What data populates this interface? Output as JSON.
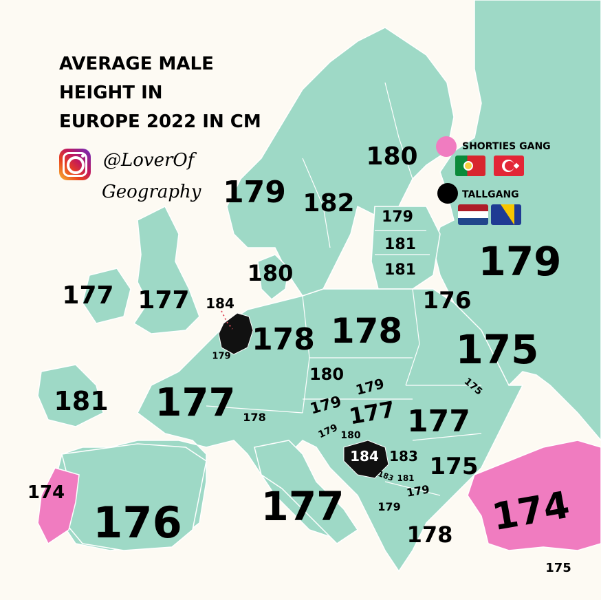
{
  "title": {
    "line1": "AVERAGE MALE",
    "line2": "HEIGHT IN",
    "line3": "EUROPE 2022 IN CM"
  },
  "credit": {
    "icon": "instagram-icon",
    "handle_line1": "@LoverOf",
    "handle_line2": "Geography"
  },
  "legend": {
    "shorties": {
      "label": "SHORTIES GANG",
      "color": "#f07cc0",
      "flags": [
        "portugal-flag",
        "turkey-flag"
      ]
    },
    "tall": {
      "label": "TALLGANG",
      "color": "#000000",
      "flags": [
        "netherlands-flag",
        "bosnia-flag"
      ]
    }
  },
  "colors": {
    "land": "#9ed9c6",
    "sea": "#fdfaf3",
    "shortest": "#f07cc0",
    "tallest": "#111111"
  },
  "values": {
    "norway": "179",
    "sweden": "182",
    "finland": "180",
    "estonia": "179",
    "latvia": "181",
    "lithuania": "181",
    "russia": "179",
    "denmark": "180",
    "iceland_or_ireland": "177",
    "uk": "177",
    "netherlands": "184",
    "belgium": "179",
    "germany": "178",
    "poland": "178",
    "belarus": "176",
    "ukraine": "175",
    "moldova": "175",
    "czechia": "180",
    "slovakia": "179",
    "austria": "179",
    "hungary": "177",
    "romania": "177",
    "switzerland": "178",
    "slovenia": "179",
    "croatia": "180",
    "bosnia": "184",
    "serbia": "183",
    "montenegro": "183",
    "kosovo": "181",
    "north_macedonia": "179",
    "albania": "179",
    "bulgaria": "175",
    "greece": "178",
    "turkey": "174",
    "cyprus": "175",
    "ireland": "181",
    "france": "177",
    "italy": "177",
    "spain": "176",
    "portugal": "174"
  }
}
